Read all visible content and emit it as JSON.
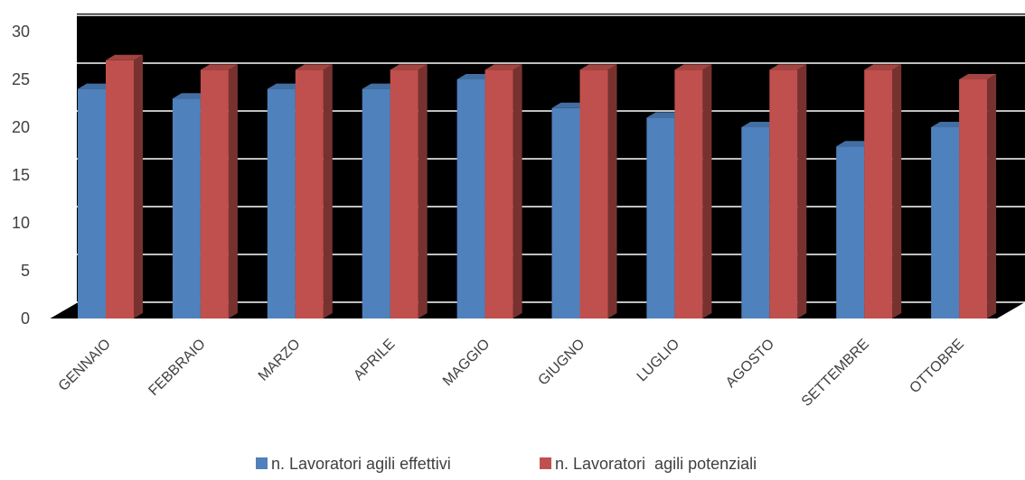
{
  "chart_data": {
    "type": "bar",
    "categories": [
      "GENNAIO",
      "FEBBRAIO",
      "MARZO",
      "APRILE",
      "MAGGIO",
      "GIUGNO",
      "LUGLIO",
      "AGOSTO",
      "SETTEMBRE",
      "OTTOBRE"
    ],
    "series": [
      {
        "name": "n. Lavoratori agili effettivi",
        "values": [
          24,
          23,
          24,
          24,
          25,
          22,
          21,
          20,
          18,
          20
        ],
        "color": "#4F81BD"
      },
      {
        "name": "n. Lavoratori  agili potenziali",
        "values": [
          27,
          26,
          26,
          26,
          26,
          26,
          26,
          26,
          26,
          25
        ],
        "color": "#C0504D"
      }
    ],
    "ylim": [
      0,
      30
    ],
    "yticks": [
      0,
      5,
      10,
      15,
      20,
      25,
      30
    ],
    "grid": true,
    "legend": "bottom",
    "background": "#000000",
    "gridline_color": "#ffffff"
  }
}
